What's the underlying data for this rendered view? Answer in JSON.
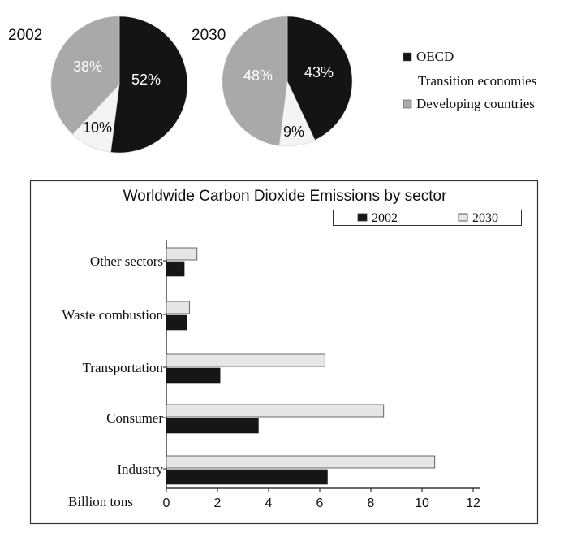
{
  "chart_data": [
    {
      "type": "pie",
      "title": "2002",
      "slices": [
        {
          "label": "OECD",
          "value": 52,
          "text": "52%",
          "color": "#141414"
        },
        {
          "label": "Transition economies",
          "value": 10,
          "text": "10%",
          "color": "#f4f4f4"
        },
        {
          "label": "Developing countries",
          "value": 38,
          "text": "38%",
          "color": "#a9a9a9"
        }
      ]
    },
    {
      "type": "pie",
      "title": "2030",
      "slices": [
        {
          "label": "OECD",
          "value": 43,
          "text": "43%",
          "color": "#141414"
        },
        {
          "label": "Transition economies",
          "value": 9,
          "text": "9%",
          "color": "#f4f4f4"
        },
        {
          "label": "Developing countries",
          "value": 48,
          "text": "48%",
          "color": "#a9a9a9"
        }
      ]
    },
    {
      "type": "bar",
      "orientation": "horizontal",
      "title": "Worldwide Carbon Dioxide Emissions by sector",
      "xlabel": "Billion tons",
      "xlim": [
        0,
        12
      ],
      "xticks": [
        "0",
        "2",
        "4",
        "6",
        "8",
        "10",
        "12"
      ],
      "categories": [
        "Other sectors",
        "Waste combustion",
        "Transportation",
        "Consumer",
        "Industry"
      ],
      "series": [
        {
          "name": "2002",
          "values": [
            0.7,
            0.8,
            2.1,
            3.6,
            6.3
          ],
          "color": "#161616"
        },
        {
          "name": "2030",
          "values": [
            1.2,
            0.9,
            6.2,
            8.5,
            10.5
          ],
          "color": "#e6e6e6"
        }
      ],
      "legend": "top-right"
    }
  ],
  "pie_legend": [
    {
      "label": "OECD",
      "color": "#141414"
    },
    {
      "label": "Transition economies",
      "color": "#ffffff"
    },
    {
      "label": "Developing countries",
      "color": "#a9a9a9"
    }
  ]
}
